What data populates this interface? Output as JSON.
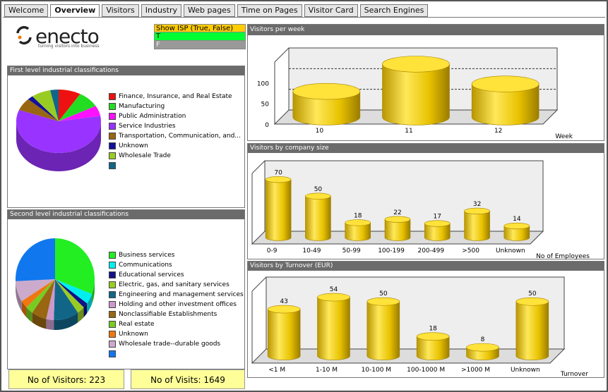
{
  "tabs": [
    "Welcome",
    "Overview",
    "Visitors",
    "Industry",
    "Web pages",
    "Time on Pages",
    "Visitor Card",
    "Search Engines"
  ],
  "active_tab": "Overview",
  "logo": {
    "word": "enecto",
    "tagline": "turning visitors into business"
  },
  "isp_filter": {
    "header": "Show ISP (True, False)",
    "true_label": "T",
    "false_label": "F"
  },
  "first_level": {
    "title": "First level industrial classifications",
    "items": [
      {
        "label": "Finance, Insurance, and Real Estate",
        "color": "#ee1111"
      },
      {
        "label": "Manufacturing",
        "color": "#22dd22"
      },
      {
        "label": "Public Administration",
        "color": "#ff11ff"
      },
      {
        "label": "Service Industries",
        "color": "#9933ff"
      },
      {
        "label": "Transportation, Communication, and...",
        "color": "#996611"
      },
      {
        "label": "Unknown",
        "color": "#111199"
      },
      {
        "label": "Wholesale Trade",
        "color": "#99cc22"
      },
      {
        "label": "",
        "color": "#116688"
      }
    ]
  },
  "second_level": {
    "title": "Second level industrial classifications",
    "items": [
      {
        "label": "Business services",
        "color": "#22ee22"
      },
      {
        "label": "Communications",
        "color": "#00eeee"
      },
      {
        "label": "Educational services",
        "color": "#111188"
      },
      {
        "label": "Electric, gas, and sanitary services",
        "color": "#99cc22"
      },
      {
        "label": "Engineering and management services",
        "color": "#116688"
      },
      {
        "label": "Holding and other investment offices",
        "color": "#cc99cc"
      },
      {
        "label": "Nonclassifiable Establishments",
        "color": "#996611"
      },
      {
        "label": "Real estate",
        "color": "#77cc22"
      },
      {
        "label": "Unknown",
        "color": "#ee7711"
      },
      {
        "label": "Wholesale trade--durable goods",
        "color": "#ccaacc"
      },
      {
        "label": "",
        "color": "#1177ee"
      }
    ]
  },
  "stats": {
    "visitors": "No of Visitors: 223",
    "visits": "No of Visits: 1649"
  },
  "chart_data": [
    {
      "type": "bar",
      "title": "Visitors per week",
      "categories": [
        "10",
        "11",
        "12"
      ],
      "values": [
        62,
        128,
        80
      ],
      "xlabel": "Week",
      "ylabel": "",
      "ylim": [
        0,
        150
      ],
      "yticks": [
        "0",
        "50",
        "100"
      ],
      "show_value_labels": false
    },
    {
      "type": "bar",
      "title": "Visitors by company size",
      "categories": [
        "0-9",
        "10-49",
        "50-99",
        "100-199",
        "200-499",
        ">500",
        "Unknown"
      ],
      "values": [
        70,
        50,
        18,
        22,
        17,
        32,
        14
      ],
      "xlabel": "No of Employees",
      "ylabel": "",
      "show_value_labels": true
    },
    {
      "type": "bar",
      "title": "Visitors by Turnover (EUR)",
      "categories": [
        "<1 M",
        "1-10 M",
        "10-100 M",
        "100-1000 M",
        ">1000 M",
        "Unknown"
      ],
      "values": [
        43,
        54,
        50,
        18,
        8,
        50
      ],
      "xlabel": "Turnover",
      "ylabel": "",
      "show_value_labels": true
    }
  ]
}
